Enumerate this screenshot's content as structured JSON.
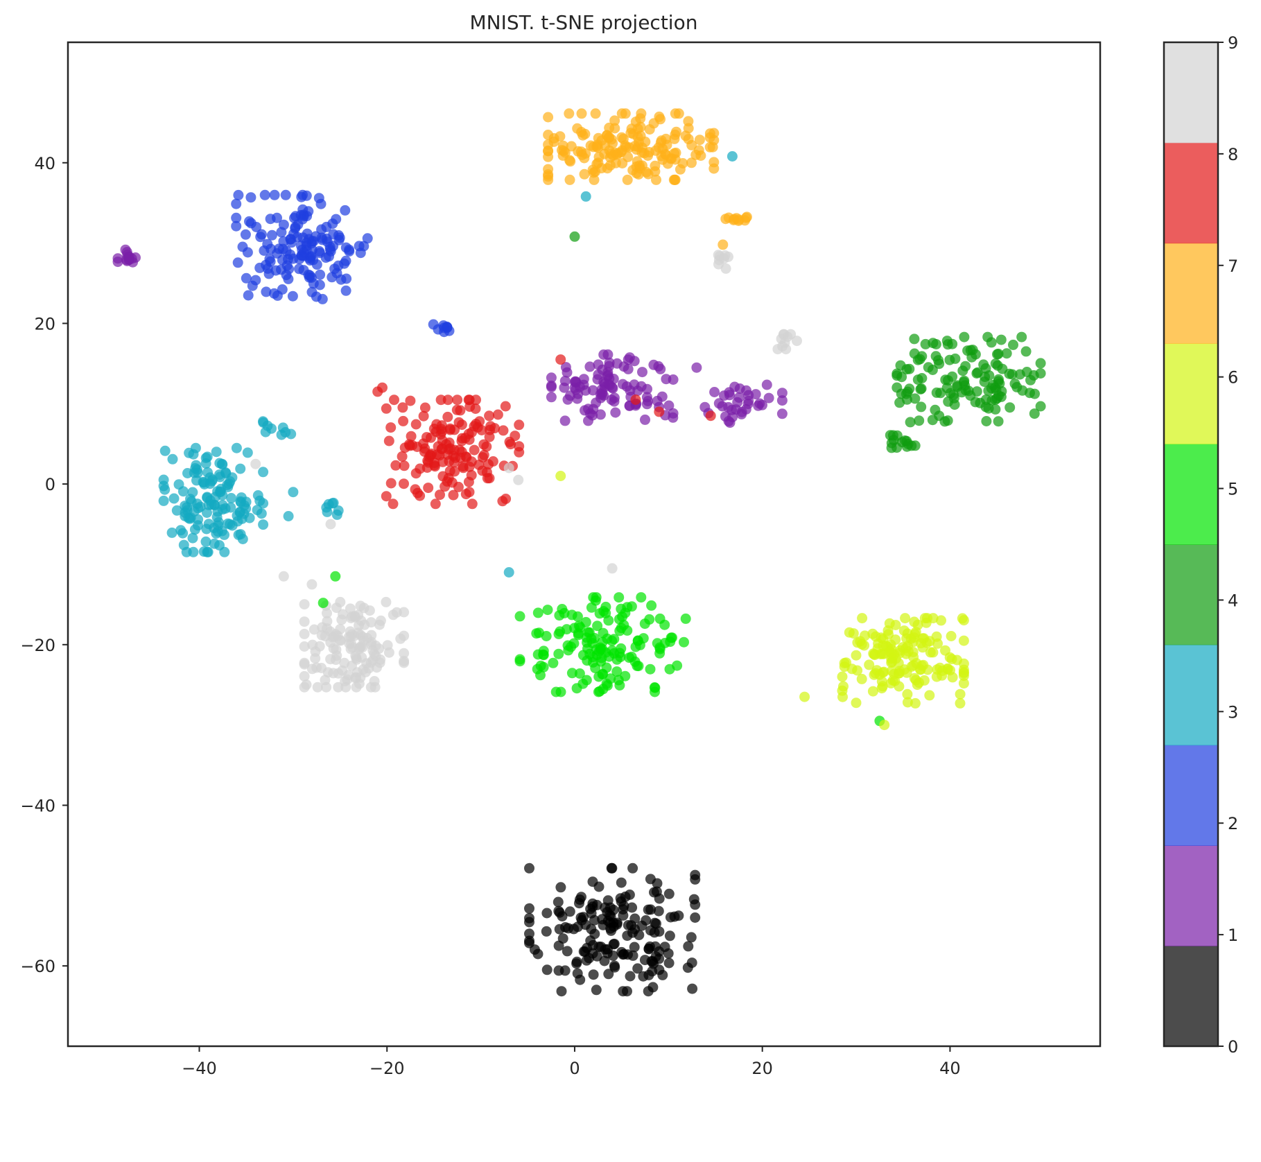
{
  "chart_data": {
    "type": "scatter",
    "title": "MNIST. t-SNE projection",
    "xlabel": "",
    "ylabel": "",
    "xlim": [
      -54,
      56
    ],
    "ylim": [
      -70,
      55
    ],
    "xticks": [
      -40,
      -20,
      0,
      20,
      40
    ],
    "yticks": [
      -60,
      -40,
      -20,
      0,
      20,
      40
    ],
    "xtick_labels": [
      "−40",
      "−20",
      "0",
      "20",
      "40"
    ],
    "ytick_labels": [
      "−60",
      "−40",
      "−20",
      "0",
      "20",
      "40"
    ],
    "grid": false,
    "marker_alpha": 0.7,
    "colorbar": {
      "range": [
        0,
        9
      ],
      "tick_labels": [
        "0",
        "1",
        "2",
        "3",
        "4",
        "5",
        "6",
        "7",
        "8",
        "9"
      ],
      "colors": [
        "#000000",
        "#7a1fa8",
        "#1f3fe0",
        "#14aac2",
        "#0f9c0f",
        "#00e400",
        "#d3f513",
        "#ffb01a",
        "#e31818",
        "#d3d3d3"
      ]
    },
    "clusters": [
      {
        "label": 0,
        "center": [
          4,
          -55.5
        ],
        "spread": [
          7.5,
          6.5
        ],
        "n": 170
      },
      {
        "label": 1,
        "center": [
          4,
          12
        ],
        "spread": [
          5.5,
          3.5
        ],
        "n": 95
      },
      {
        "label": 1,
        "center": [
          18,
          10
        ],
        "spread": [
          3.5,
          2
        ],
        "n": 35
      },
      {
        "label": 1,
        "center": [
          -47.5,
          28.3
        ],
        "spread": [
          1,
          1.2
        ],
        "n": 14
      },
      {
        "label": 2,
        "center": [
          -29,
          29.5
        ],
        "spread": [
          6,
          5.5
        ],
        "n": 150
      },
      {
        "label": 2,
        "center": [
          -14,
          19.4
        ],
        "spread": [
          1.2,
          0.4
        ],
        "n": 9
      },
      {
        "label": 3,
        "center": [
          -38.5,
          -2
        ],
        "spread": [
          4.5,
          5.5
        ],
        "n": 135
      },
      {
        "label": 3,
        "center": [
          -32,
          7
        ],
        "spread": [
          1.5,
          0.8
        ],
        "n": 9
      },
      {
        "label": 3,
        "center": [
          -26,
          -3
        ],
        "spread": [
          0.7,
          0.7
        ],
        "n": 7
      },
      {
        "label": 4,
        "center": [
          42,
          13
        ],
        "spread": [
          6.5,
          4.5
        ],
        "n": 130
      },
      {
        "label": 4,
        "center": [
          35,
          5.5
        ],
        "spread": [
          1.8,
          1.2
        ],
        "n": 14
      },
      {
        "label": 5,
        "center": [
          3,
          -20
        ],
        "spread": [
          7.5,
          5
        ],
        "n": 145
      },
      {
        "label": 6,
        "center": [
          35,
          -22
        ],
        "spread": [
          5.5,
          4.5
        ],
        "n": 150
      },
      {
        "label": 7,
        "center": [
          6,
          42
        ],
        "spread": [
          7.5,
          3.5
        ],
        "n": 165
      },
      {
        "label": 7,
        "center": [
          17,
          33
        ],
        "spread": [
          1.5,
          0.4
        ],
        "n": 10
      },
      {
        "label": 8,
        "center": [
          -13,
          4
        ],
        "spread": [
          6,
          5.5
        ],
        "n": 150
      },
      {
        "label": 9,
        "center": [
          -23.5,
          -20
        ],
        "spread": [
          4.5,
          4.5
        ],
        "n": 130
      },
      {
        "label": 9,
        "center": [
          22.5,
          17
        ],
        "spread": [
          1,
          1.4
        ],
        "n": 10
      },
      {
        "label": 9,
        "center": [
          15.5,
          28
        ],
        "spread": [
          0.8,
          1
        ],
        "n": 8
      }
    ],
    "points": [
      {
        "x": 16.8,
        "y": 40.8,
        "label": 3
      },
      {
        "x": 1.2,
        "y": 35.8,
        "label": 3
      },
      {
        "x": 0,
        "y": 30.8,
        "label": 4
      },
      {
        "x": 15.8,
        "y": 29.8,
        "label": 7
      },
      {
        "x": -21,
        "y": 11.5,
        "label": 8
      },
      {
        "x": -20.5,
        "y": 12,
        "label": 8
      },
      {
        "x": -1.5,
        "y": 15.5,
        "label": 8
      },
      {
        "x": 6.5,
        "y": 10.5,
        "label": 8
      },
      {
        "x": 9,
        "y": 9,
        "label": 8
      },
      {
        "x": 14.5,
        "y": 8.5,
        "label": 8
      },
      {
        "x": 10.5,
        "y": 13,
        "label": 1
      },
      {
        "x": 10.5,
        "y": 8.8,
        "label": 1
      },
      {
        "x": 7.5,
        "y": 8,
        "label": 1
      },
      {
        "x": 13,
        "y": 14.5,
        "label": 1
      },
      {
        "x": -1.5,
        "y": 1,
        "label": 6
      },
      {
        "x": -34,
        "y": 2.5,
        "label": 9
      },
      {
        "x": -7,
        "y": 2,
        "label": 9
      },
      {
        "x": -6,
        "y": 0.5,
        "label": 9
      },
      {
        "x": -30.5,
        "y": -4,
        "label": 3
      },
      {
        "x": -30,
        "y": -1,
        "label": 3
      },
      {
        "x": -7,
        "y": -11,
        "label": 3
      },
      {
        "x": -26,
        "y": -5,
        "label": 9
      },
      {
        "x": -31,
        "y": -11.5,
        "label": 9
      },
      {
        "x": -28,
        "y": -12.5,
        "label": 9
      },
      {
        "x": -25.5,
        "y": -11.5,
        "label": 5
      },
      {
        "x": -26.8,
        "y": -14.8,
        "label": 5
      },
      {
        "x": 4,
        "y": -10.5,
        "label": 9
      },
      {
        "x": 32.5,
        "y": -29.5,
        "label": 5
      },
      {
        "x": 33,
        "y": -30,
        "label": 6
      },
      {
        "x": 24.5,
        "y": -26.5,
        "label": 6
      }
    ]
  }
}
